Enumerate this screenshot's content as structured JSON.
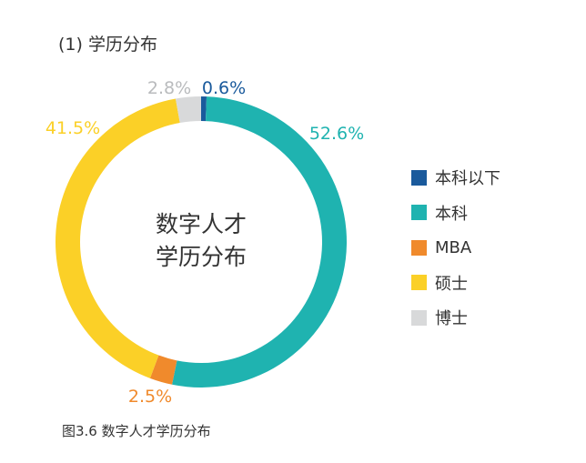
{
  "section_title": "(1) 学历分布",
  "caption": "图3.6 数字人才学历分布",
  "chart_data": {
    "type": "pie",
    "title": "数字人才学历分布",
    "title_lines": [
      "数字人才",
      "学历分布"
    ],
    "slices": [
      {
        "label": "本科以下",
        "value": 0.6,
        "display": "0.6%",
        "color": "#1a5a9c"
      },
      {
        "label": "本科",
        "value": 52.6,
        "display": "52.6%",
        "color": "#1fb3b0"
      },
      {
        "label": "MBA",
        "value": 2.5,
        "display": "2.5%",
        "color": "#f08a2c"
      },
      {
        "label": "硕士",
        "value": 41.5,
        "display": "41.5%",
        "color": "#fbd027"
      },
      {
        "label": "博士",
        "value": 2.8,
        "display": "2.8%",
        "color": "#d8d9da"
      }
    ],
    "legend_position": "right",
    "style": "donut"
  }
}
